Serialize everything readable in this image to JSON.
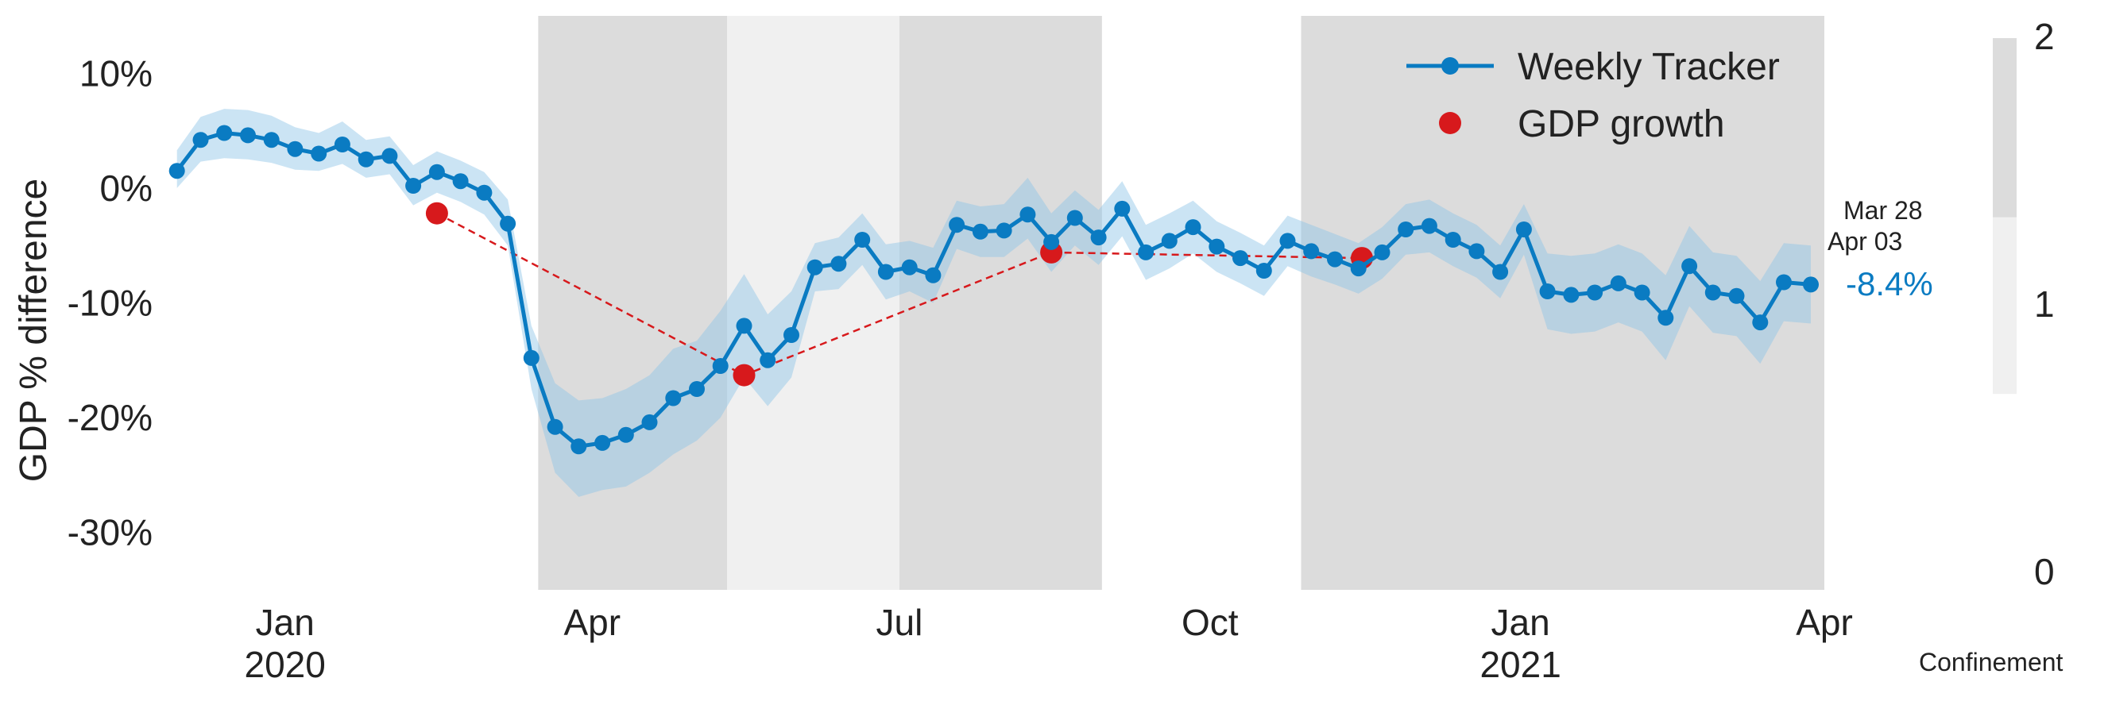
{
  "chart_data": {
    "type": "line",
    "ylabel": "GDP % difference",
    "yticks": [
      {
        "value": 10,
        "label": "10%"
      },
      {
        "value": 0,
        "label": "0%"
      },
      {
        "value": -10,
        "label": "-10%"
      },
      {
        "value": -20,
        "label": "-20%"
      },
      {
        "value": -30,
        "label": "-30%"
      }
    ],
    "ylim": [
      -35,
      15
    ],
    "xlim": [
      "2019-11-27",
      "2021-04-01"
    ],
    "xticks": [
      {
        "date": "2020-01-01",
        "label": "Jan",
        "sublabel": "2020"
      },
      {
        "date": "2020-04-01",
        "label": "Apr",
        "sublabel": ""
      },
      {
        "date": "2020-07-01",
        "label": "Jul",
        "sublabel": ""
      },
      {
        "date": "2020-10-01",
        "label": "Oct",
        "sublabel": ""
      },
      {
        "date": "2021-01-01",
        "label": "Jan",
        "sublabel": "2021"
      },
      {
        "date": "2021-04-01",
        "label": "Apr",
        "sublabel": ""
      }
    ],
    "colors": {
      "tracker": "#0a7bc2",
      "band": "#8cc4e6",
      "gdp": "#d7191c",
      "confinement_2": "#dcdcdc",
      "confinement_1": "#f0f0f0"
    },
    "confinement_periods": [
      {
        "start": "2020-03-16",
        "end": "2020-05-11",
        "level": 2
      },
      {
        "start": "2020-05-11",
        "end": "2020-07-01",
        "level": 1
      },
      {
        "start": "2020-07-01",
        "end": "2020-08-30",
        "level": 2
      },
      {
        "start": "2020-10-28",
        "end": "2021-04-01",
        "level": 2
      }
    ],
    "series": [
      {
        "name": "Weekly Tracker",
        "dates": [
          "2019-11-30",
          "2019-12-07",
          "2019-12-14",
          "2019-12-21",
          "2019-12-28",
          "2020-01-04",
          "2020-01-11",
          "2020-01-18",
          "2020-01-25",
          "2020-02-01",
          "2020-02-08",
          "2020-02-15",
          "2020-02-22",
          "2020-02-29",
          "2020-03-07",
          "2020-03-14",
          "2020-03-21",
          "2020-03-28",
          "2020-04-04",
          "2020-04-11",
          "2020-04-18",
          "2020-04-25",
          "2020-05-02",
          "2020-05-09",
          "2020-05-16",
          "2020-05-23",
          "2020-05-30",
          "2020-06-06",
          "2020-06-13",
          "2020-06-20",
          "2020-06-27",
          "2020-07-04",
          "2020-07-11",
          "2020-07-18",
          "2020-07-25",
          "2020-08-01",
          "2020-08-08",
          "2020-08-15",
          "2020-08-22",
          "2020-08-29",
          "2020-09-05",
          "2020-09-12",
          "2020-09-19",
          "2020-09-26",
          "2020-10-03",
          "2020-10-10",
          "2020-10-17",
          "2020-10-24",
          "2020-10-31",
          "2020-11-07",
          "2020-11-14",
          "2020-11-21",
          "2020-11-28",
          "2020-12-05",
          "2020-12-12",
          "2020-12-19",
          "2020-12-26",
          "2021-01-02",
          "2021-01-09",
          "2021-01-16",
          "2021-01-23",
          "2021-01-30",
          "2021-02-06",
          "2021-02-13",
          "2021-02-20",
          "2021-02-27",
          "2021-03-06",
          "2021-03-13",
          "2021-03-20",
          "2021-03-28"
        ],
        "values": [
          1.5,
          4.2,
          4.8,
          4.6,
          4.2,
          3.4,
          3.0,
          3.8,
          2.5,
          2.8,
          0.2,
          1.4,
          0.6,
          -0.4,
          -3.1,
          -14.8,
          -20.8,
          -22.5,
          -22.2,
          -21.5,
          -20.4,
          -18.3,
          -17.5,
          -15.5,
          -12.0,
          -15.0,
          -12.8,
          -6.9,
          -6.6,
          -4.5,
          -7.3,
          -6.9,
          -7.6,
          -3.2,
          -3.8,
          -3.7,
          -2.3,
          -4.7,
          -2.6,
          -4.3,
          -1.8,
          -5.6,
          -4.6,
          -3.4,
          -5.1,
          -6.1,
          -7.2,
          -4.6,
          -5.5,
          -6.2,
          -7.0,
          -5.6,
          -3.6,
          -3.3,
          -4.5,
          -5.5,
          -7.3,
          -3.6,
          -9.0,
          -9.3,
          -9.1,
          -8.3,
          -9.1,
          -11.3,
          -6.8,
          -9.1,
          -9.4,
          -11.7,
          -8.2,
          -8.4
        ],
        "lower": [
          0.0,
          2.3,
          2.6,
          2.5,
          2.2,
          1.6,
          1.5,
          2.1,
          0.9,
          1.2,
          -1.5,
          -0.4,
          -1.2,
          -2.3,
          -5.0,
          -17.5,
          -24.8,
          -26.9,
          -26.3,
          -26.0,
          -24.8,
          -23.2,
          -22.0,
          -20.0,
          -16.5,
          -19.0,
          -16.5,
          -9.0,
          -8.8,
          -6.7,
          -9.7,
          -9.0,
          -10.0,
          -5.3,
          -6.0,
          -6.0,
          -4.4,
          -7.3,
          -5.0,
          -6.7,
          -4.2,
          -8.0,
          -7.0,
          -5.7,
          -7.3,
          -8.3,
          -9.4,
          -6.8,
          -7.7,
          -8.4,
          -9.2,
          -7.9,
          -5.8,
          -5.6,
          -6.8,
          -7.8,
          -9.6,
          -5.8,
          -12.3,
          -12.7,
          -12.5,
          -11.7,
          -12.5,
          -15.0,
          -10.3,
          -12.6,
          -12.9,
          -15.3,
          -11.6,
          -11.8
        ],
        "upper": [
          3.3,
          6.2,
          6.9,
          6.8,
          6.3,
          5.3,
          4.8,
          5.8,
          4.2,
          4.5,
          2.0,
          3.2,
          2.4,
          1.4,
          -1.0,
          -12.0,
          -17.0,
          -18.5,
          -18.3,
          -17.5,
          -16.3,
          -14.0,
          -13.3,
          -10.7,
          -7.5,
          -11.0,
          -9.0,
          -4.8,
          -4.3,
          -2.2,
          -4.9,
          -4.6,
          -5.2,
          -1.1,
          -1.6,
          -1.4,
          0.9,
          -2.2,
          -0.2,
          -1.9,
          0.6,
          -3.2,
          -2.2,
          -1.1,
          -2.9,
          -3.9,
          -5.0,
          -2.4,
          -3.2,
          -4.0,
          -4.8,
          -3.4,
          -1.4,
          -1.0,
          -2.2,
          -3.2,
          -5.0,
          -1.4,
          -5.7,
          -5.9,
          -5.7,
          -4.9,
          -5.7,
          -7.6,
          -3.3,
          -5.6,
          -5.9,
          -8.1,
          -4.8,
          -5.0
        ]
      },
      {
        "name": "GDP growth",
        "dates": [
          "2020-02-15",
          "2020-05-16",
          "2020-08-15",
          "2020-11-15"
        ],
        "values": [
          -2.2,
          -16.3,
          -5.6,
          -6.1
        ]
      }
    ],
    "legend": {
      "placement": "top-right"
    },
    "last_value_label": "-8.4%",
    "last_dates": [
      "Mar 28",
      "Apr 03"
    ],
    "colorbar": {
      "label": "Confinement",
      "ticks": [
        "0",
        "1",
        "2"
      ]
    },
    "grid": false
  }
}
